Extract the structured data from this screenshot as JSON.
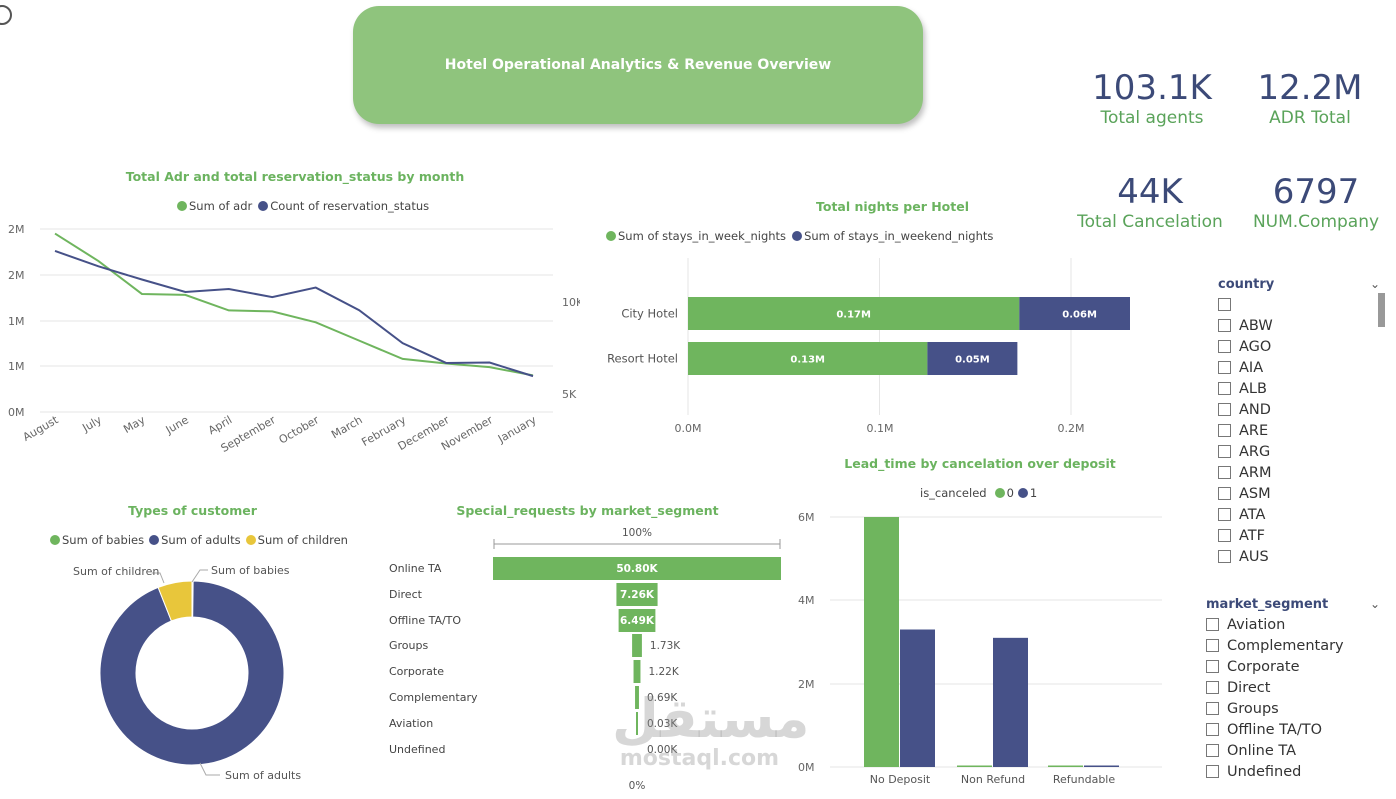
{
  "header": {
    "title": "Hotel Operational Analytics & Revenue Overview"
  },
  "kpis": [
    {
      "value": "103.1K",
      "label": "Total agents"
    },
    {
      "value": "12.2M",
      "label": "ADR Total"
    },
    {
      "value": "44K",
      "label": "Total Cancelation"
    },
    {
      "value": "6797",
      "label": "NUM.Company"
    }
  ],
  "colors": {
    "green": "#6fb55e",
    "navy": "#465188",
    "yellow": "#e8c63b",
    "title_green": "#6bb35f",
    "banner": "#8fc47d"
  },
  "line_chart": {
    "title": "Total Adr and total  reservation_status by month",
    "series_names": [
      "Sum of adr",
      "Count of reservation_status"
    ],
    "left_ticks": [
      "2M",
      "2M",
      "1M",
      "1M",
      "0M"
    ],
    "right_ticks": [
      "10K",
      "5K"
    ]
  },
  "nights_chart": {
    "title": "Total nights per Hotel",
    "series_names": [
      "Sum of stays_in_week_nights",
      "Sum of stays_in_weekend_nights"
    ],
    "x_ticks": [
      "0.0M",
      "0.1M",
      "0.2M"
    ]
  },
  "customer_chart": {
    "title": "Types of customer",
    "series_names": [
      "Sum of babies",
      "Sum of adults",
      "Sum of children"
    ],
    "callouts": {
      "children": "Sum of children",
      "babies": "Sum of babies",
      "adults": "Sum of adults"
    }
  },
  "funnel_chart": {
    "title": "Special_requests by market_segment",
    "top_label": "100%",
    "bottom_label": "0%"
  },
  "deposit_chart": {
    "title": "Lead_time by cancelation over deposit",
    "legend_title": "is_canceled",
    "series_names": [
      "0",
      "1"
    ],
    "y_ticks": [
      "6M",
      "4M",
      "2M",
      "0M"
    ]
  },
  "country_slicer": {
    "title": "country",
    "items": [
      "",
      "ABW",
      "AGO",
      "AIA",
      "ALB",
      "AND",
      "ARE",
      "ARG",
      "ARM",
      "ASM",
      "ATA",
      "ATF",
      "AUS"
    ]
  },
  "segment_slicer": {
    "title": "market_segment",
    "items": [
      "Aviation",
      "Complementary",
      "Corporate",
      "Direct",
      "Groups",
      "Offline TA/TO",
      "Online TA",
      "Undefined"
    ]
  },
  "watermark": {
    "brand": "مستقل",
    "site": "mostaql.com"
  },
  "chart_data": [
    {
      "type": "line",
      "title": "Total Adr and total  reservation_status by month",
      "categories": [
        "August",
        "July",
        "May",
        "June",
        "April",
        "September",
        "October",
        "March",
        "February",
        "December",
        "November",
        "January"
      ],
      "series": [
        {
          "name": "Sum of adr",
          "axis": "left",
          "values": [
            1.95,
            1.65,
            1.29,
            1.28,
            1.11,
            1.1,
            0.98,
            0.78,
            0.58,
            0.53,
            0.49,
            0.4
          ]
        },
        {
          "name": "Count of reservation_status",
          "axis": "right",
          "values": [
            14000,
            12950,
            12050,
            11200,
            11400,
            10850,
            11500,
            9950,
            7700,
            6350,
            6380,
            5450
          ]
        }
      ],
      "ylim_left": [
        0,
        2.0
      ],
      "ylim_right": [
        3000,
        15500
      ],
      "left_ticks": [
        "2M",
        "2M",
        "1M",
        "1M",
        "0M"
      ],
      "right_ticks": [
        "10K",
        "5K"
      ],
      "legend": "top"
    },
    {
      "type": "bar",
      "orientation": "horizontal",
      "stacked": true,
      "title": "Total nights per Hotel",
      "categories": [
        "City Hotel",
        "Resort Hotel"
      ],
      "series": [
        {
          "name": "Sum of stays_in_week_nights",
          "values": [
            0.173,
            0.125
          ],
          "labels": [
            "0.17M",
            "0.13M"
          ]
        },
        {
          "name": "Sum of stays_in_weekend_nights",
          "values": [
            0.063,
            0.047
          ],
          "labels": [
            "0.06M",
            "0.05M"
          ]
        }
      ],
      "xlim": [
        0,
        0.25
      ],
      "x_ticks": [
        "0.0M",
        "0.1M",
        "0.2M"
      ],
      "legend": "top"
    },
    {
      "type": "pie",
      "donut": true,
      "title": "Types of customer",
      "labels": [
        "Sum of babies",
        "Sum of adults",
        "Sum of children"
      ],
      "values": [
        0.2,
        93.8,
        6.0
      ],
      "legend": "top"
    },
    {
      "type": "bar",
      "subtype": "funnel",
      "title": "Special_requests by market_segment",
      "categories": [
        "Online TA",
        "Direct",
        "Offline TA/TO",
        "Groups",
        "Corporate",
        "Complementary",
        "Aviation",
        "Undefined"
      ],
      "values": [
        50.8,
        7.26,
        6.49,
        1.73,
        1.22,
        0.69,
        0.03,
        0.0
      ],
      "labels": [
        "50.80K",
        "7.26K",
        "6.49K",
        "1.73K",
        "1.22K",
        "0.69K",
        "0.03K",
        "0.00K"
      ]
    },
    {
      "type": "bar",
      "title": "Lead_time by cancelation over deposit",
      "categories": [
        "No Deposit",
        "Non Refund",
        "Refundable"
      ],
      "series": [
        {
          "name": "0",
          "values": [
            6.0,
            0.02,
            0.02
          ]
        },
        {
          "name": "1",
          "values": [
            3.3,
            3.1,
            0.03
          ]
        }
      ],
      "ylim": [
        0,
        6.0
      ],
      "y_ticks": [
        "6M",
        "4M",
        "2M",
        "0M"
      ],
      "ylabel": "",
      "legend": "top"
    }
  ]
}
